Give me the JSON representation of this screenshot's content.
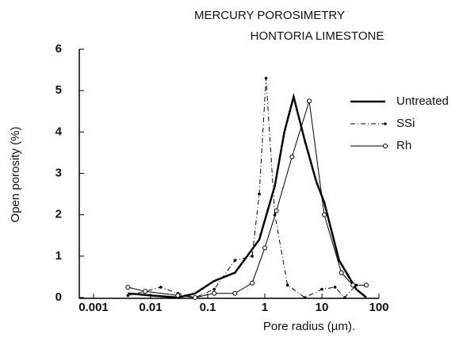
{
  "chart_data": {
    "type": "line",
    "title": "MERCURY POROSIMETRY",
    "subtitle": "HONTORIA LIMESTONE",
    "x_label": "Pore radius (µm).",
    "y_label": "Open porosity (%)",
    "xscale": "log",
    "xlim": [
      0.001,
      100
    ],
    "xticks": [
      0.001,
      0.01,
      0.1,
      1,
      10,
      100
    ],
    "ylim": [
      0,
      6
    ],
    "yticks": [
      0,
      1,
      2,
      3,
      4,
      5,
      6
    ],
    "legend": "right",
    "series": [
      {
        "name": "Untreated",
        "color": "#000000",
        "line_style": "solid-thick",
        "marker": "none",
        "x": [
          0.004,
          0.01,
          0.03,
          0.06,
          0.13,
          0.3,
          0.8,
          1.5,
          2.2,
          3.2,
          5,
          8,
          11,
          20,
          40,
          60
        ],
        "values": [
          0.1,
          0.05,
          0,
          0.1,
          0.4,
          0.6,
          1.4,
          2.7,
          4,
          4.85,
          3.8,
          2.8,
          2.3,
          0.9,
          0.2,
          0
        ]
      },
      {
        "name": "SSi",
        "color": "#000000",
        "line_style": "dashdot",
        "marker": "dot",
        "x": [
          0.004,
          0.008,
          0.015,
          0.03,
          0.06,
          0.13,
          0.3,
          0.6,
          0.8,
          1.05,
          1.5,
          2.5,
          5,
          10,
          17,
          25,
          40
        ],
        "values": [
          0.05,
          0.15,
          0.25,
          0.1,
          0,
          0.2,
          0.9,
          1.0,
          2.5,
          5.3,
          2,
          0.3,
          0,
          0.2,
          0.25,
          0,
          0.3
        ]
      },
      {
        "name": "Rh",
        "color": "#000000",
        "line_style": "solid-thin",
        "marker": "circle",
        "x": [
          0.004,
          0.008,
          0.03,
          0.06,
          0.13,
          0.3,
          0.6,
          1.0,
          1.6,
          3,
          6,
          11,
          22,
          35,
          60
        ],
        "values": [
          0.25,
          0.15,
          0.05,
          0,
          0.1,
          0.1,
          0.35,
          1.2,
          2.1,
          3.4,
          4.75,
          2.0,
          0.6,
          0.3,
          0.3
        ]
      }
    ]
  }
}
